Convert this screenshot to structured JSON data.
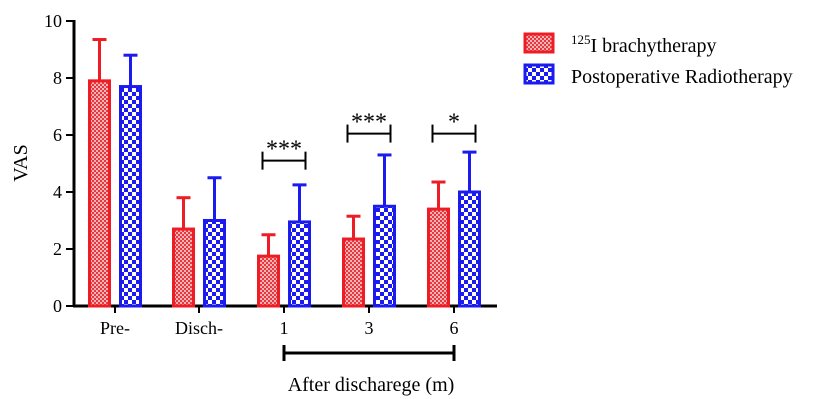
{
  "chart_data": {
    "type": "bar",
    "ylabel": "VAS",
    "xlabel": "After discharege (m)",
    "ylim": [
      0,
      10
    ],
    "yticks": [
      0,
      2,
      4,
      6,
      8,
      10
    ],
    "categories": [
      "Pre-",
      "Disch-",
      "1",
      "3",
      "6"
    ],
    "series": [
      {
        "name": "125I brachytherapy",
        "name_sup": "125",
        "name_main": "I brachytherapy",
        "color": "#ee1c24",
        "pattern": "fine-check",
        "values": [
          7.9,
          2.7,
          1.75,
          2.35,
          3.4
        ],
        "errors": [
          1.45,
          1.1,
          0.75,
          0.8,
          0.95
        ]
      },
      {
        "name": "Postoperative Radiotherapy",
        "color": "#1b1bf0",
        "pattern": "coarse-check",
        "values": [
          7.7,
          3.0,
          2.95,
          3.5,
          4.0
        ],
        "errors": [
          1.1,
          1.5,
          1.3,
          1.8,
          1.4
        ]
      }
    ],
    "significance": [
      {
        "category": "1",
        "label": "***",
        "level": 5.1
      },
      {
        "category": "3",
        "label": "***",
        "level": 6.05
      },
      {
        "category": "6",
        "label": "*",
        "level": 6.05
      }
    ],
    "group_bracket": {
      "from": "1",
      "to": "6"
    },
    "legend_position": "top-right",
    "grid": false
  }
}
